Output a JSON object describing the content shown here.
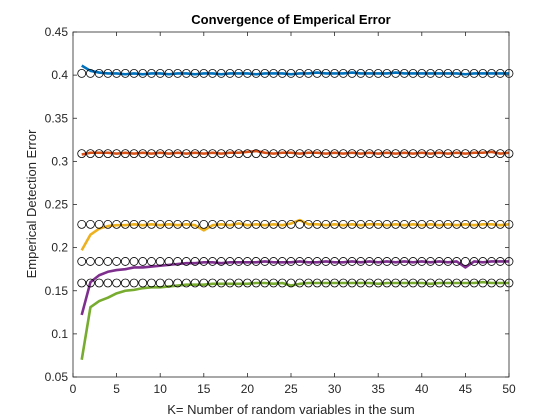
{
  "chart_data": {
    "type": "line",
    "title": "Convergence of Emperical Error",
    "xlabel": "K= Number of random variables in the sum",
    "ylabel": "Emperical Detection Error",
    "xlim": [
      0,
      50
    ],
    "ylim": [
      0.05,
      0.45
    ],
    "xticks": [
      "0",
      "5",
      "10",
      "15",
      "20",
      "25",
      "30",
      "35",
      "40",
      "45",
      "50"
    ],
    "yticks": [
      "0.05",
      "0.1",
      "0.15",
      "0.2",
      "0.25",
      "0.3",
      "0.35",
      "0.4",
      "0.45"
    ],
    "grid": false,
    "x": [
      1,
      2,
      3,
      4,
      5,
      6,
      7,
      8,
      9,
      10,
      11,
      12,
      13,
      14,
      15,
      16,
      17,
      18,
      19,
      20,
      21,
      22,
      23,
      24,
      25,
      26,
      27,
      28,
      29,
      30,
      31,
      32,
      33,
      34,
      35,
      36,
      37,
      38,
      39,
      40,
      41,
      42,
      43,
      44,
      45,
      46,
      47,
      48,
      49,
      50
    ],
    "series": [
      {
        "color": "#0072BD",
        "values": [
          0.411,
          0.405,
          0.403,
          0.402,
          0.402,
          0.401,
          0.402,
          0.401,
          0.402,
          0.402,
          0.401,
          0.402,
          0.402,
          0.401,
          0.402,
          0.402,
          0.401,
          0.402,
          0.402,
          0.402,
          0.401,
          0.402,
          0.402,
          0.402,
          0.401,
          0.402,
          0.402,
          0.403,
          0.402,
          0.402,
          0.402,
          0.403,
          0.402,
          0.402,
          0.402,
          0.402,
          0.403,
          0.402,
          0.402,
          0.402,
          0.402,
          0.402,
          0.402,
          0.402,
          0.401,
          0.402,
          0.402,
          0.402,
          0.402,
          0.402
        ],
        "markers": 0.402
      },
      {
        "color": "#D95319",
        "values": [
          0.308,
          0.31,
          0.31,
          0.31,
          0.309,
          0.31,
          0.309,
          0.31,
          0.309,
          0.31,
          0.309,
          0.31,
          0.309,
          0.31,
          0.309,
          0.31,
          0.309,
          0.31,
          0.31,
          0.311,
          0.312,
          0.31,
          0.309,
          0.31,
          0.31,
          0.309,
          0.31,
          0.31,
          0.309,
          0.31,
          0.309,
          0.31,
          0.309,
          0.31,
          0.309,
          0.31,
          0.309,
          0.31,
          0.309,
          0.31,
          0.309,
          0.31,
          0.309,
          0.31,
          0.309,
          0.31,
          0.31,
          0.311,
          0.309,
          0.31
        ],
        "markers": 0.309
      },
      {
        "color": "#EDB120",
        "values": [
          0.197,
          0.215,
          0.222,
          0.225,
          0.226,
          0.226,
          0.227,
          0.226,
          0.227,
          0.226,
          0.227,
          0.226,
          0.227,
          0.226,
          0.22,
          0.226,
          0.227,
          0.226,
          0.228,
          0.226,
          0.227,
          0.226,
          0.227,
          0.226,
          0.228,
          0.232,
          0.227,
          0.227,
          0.226,
          0.227,
          0.226,
          0.227,
          0.226,
          0.227,
          0.227,
          0.226,
          0.227,
          0.226,
          0.227,
          0.226,
          0.227,
          0.226,
          0.227,
          0.226,
          0.227,
          0.226,
          0.227,
          0.227,
          0.226,
          0.227
        ],
        "markers": 0.227
      },
      {
        "color": "#7E2F8E",
        "values": [
          0.122,
          0.16,
          0.168,
          0.172,
          0.174,
          0.175,
          0.177,
          0.177,
          0.178,
          0.179,
          0.18,
          0.181,
          0.182,
          0.182,
          0.183,
          0.183,
          0.182,
          0.183,
          0.183,
          0.183,
          0.183,
          0.184,
          0.183,
          0.183,
          0.183,
          0.184,
          0.183,
          0.183,
          0.184,
          0.183,
          0.183,
          0.184,
          0.183,
          0.184,
          0.183,
          0.184,
          0.183,
          0.184,
          0.183,
          0.184,
          0.183,
          0.184,
          0.183,
          0.184,
          0.177,
          0.184,
          0.183,
          0.184,
          0.184,
          0.184
        ],
        "markers": 0.184
      },
      {
        "color": "#77AC30",
        "values": [
          0.07,
          0.131,
          0.138,
          0.142,
          0.147,
          0.15,
          0.151,
          0.153,
          0.154,
          0.154,
          0.155,
          0.156,
          0.157,
          0.157,
          0.157,
          0.158,
          0.158,
          0.158,
          0.158,
          0.158,
          0.159,
          0.159,
          0.158,
          0.159,
          0.156,
          0.158,
          0.159,
          0.159,
          0.159,
          0.159,
          0.159,
          0.159,
          0.159,
          0.159,
          0.158,
          0.159,
          0.159,
          0.159,
          0.159,
          0.159,
          0.158,
          0.159,
          0.159,
          0.159,
          0.159,
          0.159,
          0.16,
          0.159,
          0.159,
          0.159
        ],
        "markers": 0.159
      }
    ],
    "marker_style": "open-circle-black"
  }
}
